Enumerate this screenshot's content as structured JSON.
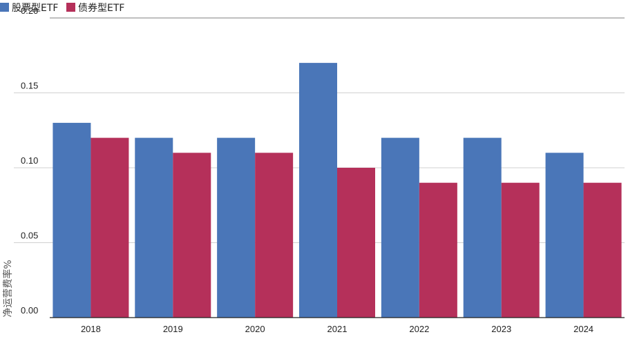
{
  "chart_data": {
    "type": "bar",
    "title": "",
    "xlabel": "",
    "ylabel": "净运营费率%",
    "categories": [
      "2018",
      "2019",
      "2020",
      "2021",
      "2022",
      "2023",
      "2024"
    ],
    "series": [
      {
        "name": "股票型ETF",
        "color": "#4a76b8",
        "values": [
          0.13,
          0.12,
          0.12,
          0.17,
          0.12,
          0.12,
          0.11
        ]
      },
      {
        "name": "债券型ETF",
        "color": "#b5305a",
        "values": [
          0.12,
          0.11,
          0.11,
          0.1,
          0.09,
          0.09,
          0.09
        ]
      }
    ],
    "ylim": [
      0,
      0.2
    ],
    "yticks": [
      "0.00",
      "0.05",
      "0.10",
      "0.15",
      "0.20"
    ],
    "legend_position": "top-left",
    "grid": true
  }
}
